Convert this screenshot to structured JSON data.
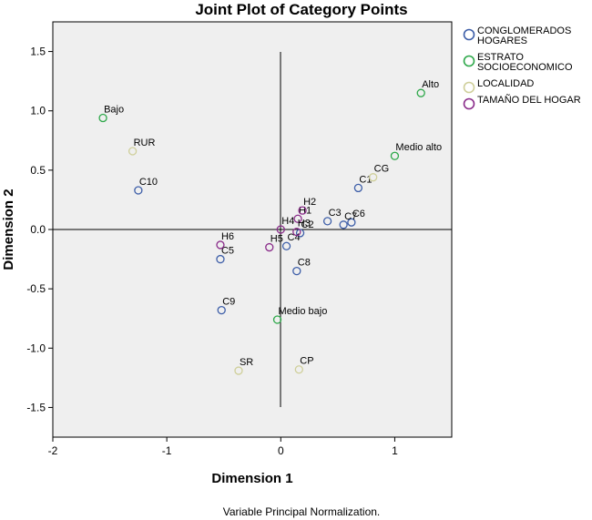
{
  "chart_data": {
    "type": "scatter",
    "title": "Joint Plot of Category Points",
    "xlabel": "Dimension 1",
    "ylabel": "Dimension 2",
    "footnote": "Variable Principal Normalization.",
    "xlim": [
      -2,
      1.5
    ],
    "ylim": [
      -1.75,
      1.75
    ],
    "xticks": [
      -2,
      -1,
      0,
      1
    ],
    "yticks": [
      -1.5,
      -1.0,
      -0.5,
      0.0,
      0.5,
      1.0,
      1.5
    ],
    "xtick_labels": [
      "-2",
      "-1",
      "0",
      "1"
    ],
    "ytick_labels": [
      "-1.5",
      "-1.0",
      "-0.5",
      "0.0",
      "0.5",
      "1.0",
      "1.5"
    ],
    "grid": false,
    "legend_position": "right",
    "series": [
      {
        "name": "CONGLOMERADOS HOGARES",
        "legend_lines": [
          "CONGLOMERADOS",
          "HOGARES"
        ],
        "color": "#3d5ea8",
        "points": [
          {
            "label": "C1",
            "x": 0.68,
            "y": 0.35
          },
          {
            "label": "C2",
            "x": 0.17,
            "y": -0.03
          },
          {
            "label": "C3",
            "x": 0.41,
            "y": 0.07
          },
          {
            "label": "C4",
            "x": 0.05,
            "y": -0.14
          },
          {
            "label": "C5",
            "x": -0.53,
            "y": -0.25
          },
          {
            "label": "C6",
            "x": 0.62,
            "y": 0.06
          },
          {
            "label": "C7",
            "x": 0.55,
            "y": 0.04
          },
          {
            "label": "C8",
            "x": 0.14,
            "y": -0.35
          },
          {
            "label": "C9",
            "x": -0.52,
            "y": -0.68
          },
          {
            "label": "C10",
            "x": -1.25,
            "y": 0.33
          }
        ]
      },
      {
        "name": "ESTRATO SOCIOECONOMICO",
        "legend_lines": [
          "ESTRATO",
          "SOCIOECONOMICO"
        ],
        "color": "#2ea84a",
        "points": [
          {
            "label": "Alto",
            "x": 1.23,
            "y": 1.15
          },
          {
            "label": "Medio alto",
            "x": 1.0,
            "y": 0.62
          },
          {
            "label": "Bajo",
            "x": -1.56,
            "y": 0.94
          },
          {
            "label": "Medio bajo",
            "x": -0.03,
            "y": -0.76
          }
        ]
      },
      {
        "name": "LOCALIDAD",
        "legend_lines": [
          "LOCALIDAD"
        ],
        "color": "#cfcf9a",
        "points": [
          {
            "label": "RUR",
            "x": -1.3,
            "y": 0.66
          },
          {
            "label": "CG",
            "x": 0.81,
            "y": 0.44
          },
          {
            "label": "SR",
            "x": -0.37,
            "y": -1.19
          },
          {
            "label": "CP",
            "x": 0.16,
            "y": -1.18
          }
        ]
      },
      {
        "name": "TAMAÑO DEL HOGAR",
        "legend_lines": [
          "TAMAÑO DEL HOGAR"
        ],
        "color": "#8a2c8a",
        "points": [
          {
            "label": "H1",
            "x": 0.15,
            "y": 0.09
          },
          {
            "label": "H2",
            "x": 0.19,
            "y": 0.16
          },
          {
            "label": "H3",
            "x": 0.14,
            "y": -0.02
          },
          {
            "label": "H4",
            "x": 0.0,
            "y": 0.0
          },
          {
            "label": "H5",
            "x": -0.1,
            "y": -0.15
          },
          {
            "label": "H6",
            "x": -0.53,
            "y": -0.13
          }
        ]
      }
    ]
  }
}
